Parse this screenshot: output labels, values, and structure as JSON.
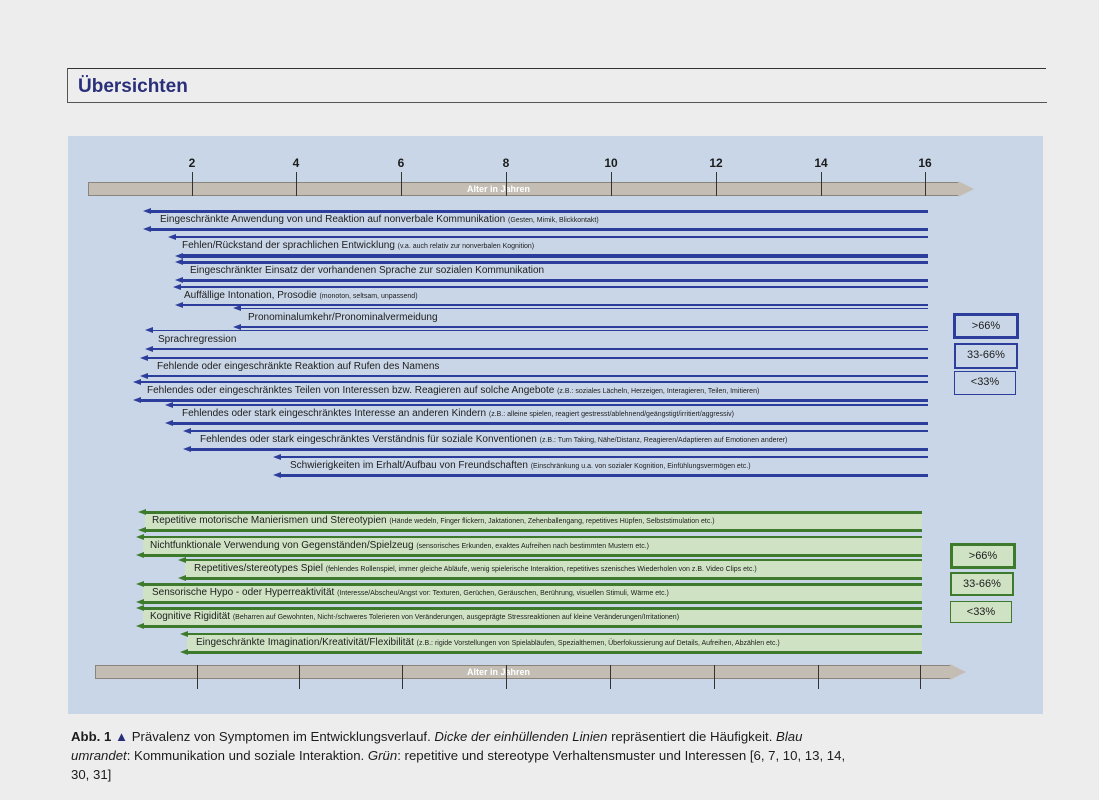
{
  "header": {
    "title": "Übersichten"
  },
  "axis": {
    "ticks": [
      "2",
      "4",
      "6",
      "8",
      "10",
      "12",
      "14",
      "16"
    ],
    "label": "Alter in Jahren"
  },
  "comm_rows": [
    {
      "main": "Eingeschränkte Anwendung von und Reaktion auf nonverbale Kommunikation",
      "note": "(Gesten, Mimik, Blickkontakt)"
    },
    {
      "main": "Fehlen/Rückstand der sprachlichen Entwicklung",
      "note": "(v.a. auch relativ zur nonverbalen Kognition)"
    },
    {
      "main": "Eingeschränkter Einsatz der vorhandenen Sprache zur sozialen Kommunikation",
      "note": ""
    },
    {
      "main": "Auffällige Intonation, Prosodie",
      "note": "(monoton, seltsam, unpassend)"
    },
    {
      "main": "Pronominalumkehr/Pronominalvermeidung",
      "note": ""
    },
    {
      "main": "Sprachregression",
      "note": ""
    },
    {
      "main": "Fehlende oder eingeschränkte Reaktion auf Rufen des Namens",
      "note": ""
    },
    {
      "main": "Fehlendes oder eingeschränktes Teilen von Interessen bzw. Reagieren auf solche Angebote",
      "note": "(z.B.: soziales Lächeln, Herzeigen, Interagieren, Teilen, Imitieren)"
    },
    {
      "main": "Fehlendes oder stark eingeschränktes Interesse an anderen Kindern",
      "note": "(z.B.: alleine spielen, reagiert gestresst/ablehnend/geängstigt/irritiert/aggressiv)"
    },
    {
      "main": "Fehlendes oder stark eingeschränktes Verständnis für soziale Konventionen",
      "note": "(z.B.: Turn Taking, Nähe/Distanz, Reagieren/Adaptieren auf Emotionen anderer)"
    },
    {
      "main": "Schwierigkeiten im Erhalt/Aufbau von Freundschaften",
      "note": "(Einschränkung u.a. von sozialer Kognition, Einfühlungsvermögen etc.)"
    }
  ],
  "rrb_rows": [
    {
      "main": "Repetitive motorische Manierismen und Stereotypien",
      "note": "(Hände wedeln, Finger flickern, Jaktationen, Zehenballengang, repetitives Hüpfen, Selbststimulation etc.)"
    },
    {
      "main": "Nichtfunktionale Verwendung von Gegenständen/Spielzeug",
      "note": "(sensorisches Erkunden, exaktes Aufreihen nach bestimmten Mustern etc.)"
    },
    {
      "main": "Repetitives/stereotypes Spiel",
      "note": "(fehlendes Rollenspiel, immer gleiche Abläufe, wenig spielerische Interaktion, repetitives szenisches Wiederholen von z.B. Video Clips etc.)"
    },
    {
      "main": "Sensorische Hypo - oder Hyperreaktivität",
      "note": "(Interesse/Abscheu/Angst vor: Texturen, Gerüchen, Geräuschen, Berührung, visuellen Stimuli, Wärme etc.)"
    },
    {
      "main": "Kognitive Rigidität",
      "note": "(Beharren auf Gewohnten, Nicht-/schweres Tolerieren von Veränderungen, ausgeprägte Stressreaktionen auf kleine Veränderungen/Irritationen)"
    },
    {
      "main": "Eingeschränkte Imagination/Kreativität/Flexibilität",
      "note": "(z.B.: rigide Vorstellungen von Spielabläufen, Spezialthemen, Überfokussierung auf Details, Aufreihen, Abzählen etc.)"
    }
  ],
  "legend_blue": [
    ">66%",
    "33-66%",
    "<33%"
  ],
  "legend_green": [
    ">66%",
    "33-66%",
    "<33%"
  ],
  "colors": {
    "blue": "#2d3d9b",
    "green": "#3d7a2c",
    "panel": "#c9d6e7"
  },
  "caption": {
    "label": "Abb. 1",
    "arrow": "▲",
    "t1": " Prävalenz von Symptomen im Entwicklungsverlauf. ",
    "i1": "Dicke der einhüllenden Linien",
    "t2": " repräsentiert die Häufigkeit. ",
    "i2": "Blau umrandet",
    "t3": ": Kommunikation und soziale Interaktion. ",
    "i3": "Grün",
    "t4": ": repetitive und stereotype Verhaltensmuster und Interessen [6, 7, 10, 13, 14, 30, 31]"
  }
}
